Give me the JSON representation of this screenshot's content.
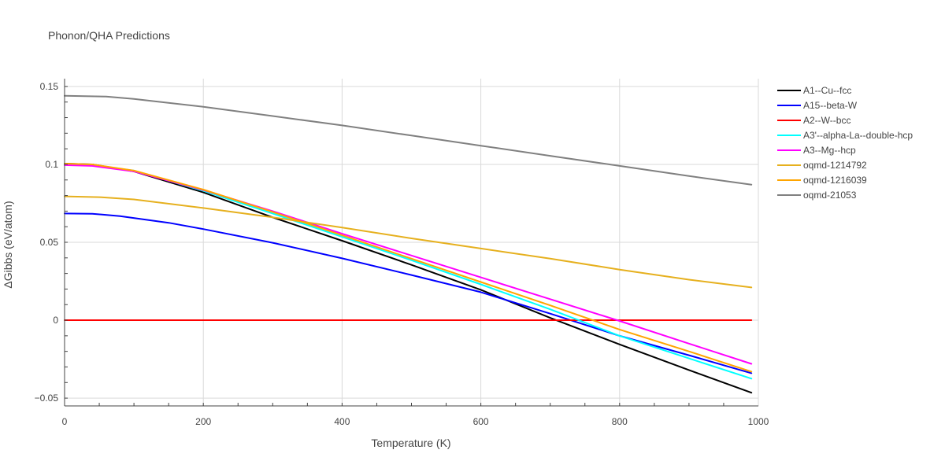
{
  "chart_data": {
    "type": "line",
    "title": "Phonon/QHA Predictions",
    "xlabel": "Temperature (K)",
    "ylabel": "ΔGibbs (eV/atom)",
    "xlim": [
      0,
      1000
    ],
    "ylim": [
      -0.055,
      0.155
    ],
    "xticks": [
      0,
      200,
      400,
      600,
      800,
      1000
    ],
    "xtick_labels": [
      "0",
      "200",
      "400",
      "600",
      "800",
      "1000"
    ],
    "yticks": [
      -0.05,
      0,
      0.05,
      0.1,
      0.15
    ],
    "ytick_labels": [
      "−0.05",
      "0",
      "0.05",
      "0.1",
      "0.15"
    ],
    "grid": true,
    "legend_position": "right",
    "series": [
      {
        "name": "A1--Cu--fcc",
        "color": "#000000",
        "x": [
          0,
          40,
          100,
          200,
          300,
          400,
          500,
          600,
          700,
          800,
          900,
          990
        ],
        "y": [
          0.1005,
          0.1,
          0.0955,
          0.082,
          0.066,
          0.051,
          0.0355,
          0.0195,
          0.0015,
          -0.0155,
          -0.032,
          -0.0465
        ]
      },
      {
        "name": "A15--beta-W",
        "color": "#0000ff",
        "x": [
          0,
          40,
          80,
          150,
          200,
          300,
          400,
          500,
          600,
          700,
          800,
          900,
          990
        ],
        "y": [
          0.0685,
          0.0683,
          0.0668,
          0.0625,
          0.0585,
          0.0497,
          0.0397,
          0.029,
          0.018,
          0.0042,
          -0.01,
          -0.0225,
          -0.034
        ]
      },
      {
        "name": "A2--W--bcc",
        "color": "#ff0000",
        "x": [
          0,
          990
        ],
        "y": [
          0.0,
          0.0
        ]
      },
      {
        "name": "A3'--alpha-La--double-hcp",
        "color": "#00ffff",
        "x": [
          0,
          40,
          100,
          200,
          300,
          400,
          500,
          600,
          700,
          800,
          900,
          990
        ],
        "y": [
          0.1,
          0.0995,
          0.096,
          0.083,
          0.0685,
          0.0535,
          0.0385,
          0.023,
          0.007,
          -0.01,
          -0.0245,
          -0.0375
        ]
      },
      {
        "name": "A3--Mg--hcp",
        "color": "#ff00ff",
        "x": [
          0,
          40,
          100,
          200,
          300,
          400,
          500,
          600,
          700,
          800,
          900,
          990
        ],
        "y": [
          0.0995,
          0.099,
          0.0955,
          0.0835,
          0.07,
          0.0555,
          0.0415,
          0.0275,
          0.0135,
          -0.0005,
          -0.015,
          -0.028
        ]
      },
      {
        "name": "oqmd-1214792",
        "color": "#e6b01e",
        "x": [
          0,
          50,
          100,
          200,
          300,
          400,
          500,
          600,
          700,
          800,
          900,
          990
        ],
        "y": [
          0.0795,
          0.079,
          0.0775,
          0.072,
          0.066,
          0.0595,
          0.0525,
          0.046,
          0.0395,
          0.0325,
          0.026,
          0.021
        ]
      },
      {
        "name": "oqmd-1216039",
        "color": "#ffa500",
        "x": [
          0,
          40,
          100,
          200,
          300,
          400,
          500,
          600,
          700,
          800,
          900,
          990
        ],
        "y": [
          0.1005,
          0.1,
          0.096,
          0.0838,
          0.0695,
          0.0545,
          0.0395,
          0.0245,
          0.0095,
          -0.006,
          -0.02,
          -0.033
        ]
      },
      {
        "name": "oqmd-21053",
        "color": "#808080",
        "x": [
          0,
          60,
          100,
          200,
          300,
          400,
          500,
          600,
          700,
          800,
          900,
          990
        ],
        "y": [
          0.144,
          0.1435,
          0.142,
          0.137,
          0.131,
          0.125,
          0.1185,
          0.112,
          0.1055,
          0.099,
          0.0925,
          0.087
        ]
      }
    ]
  }
}
